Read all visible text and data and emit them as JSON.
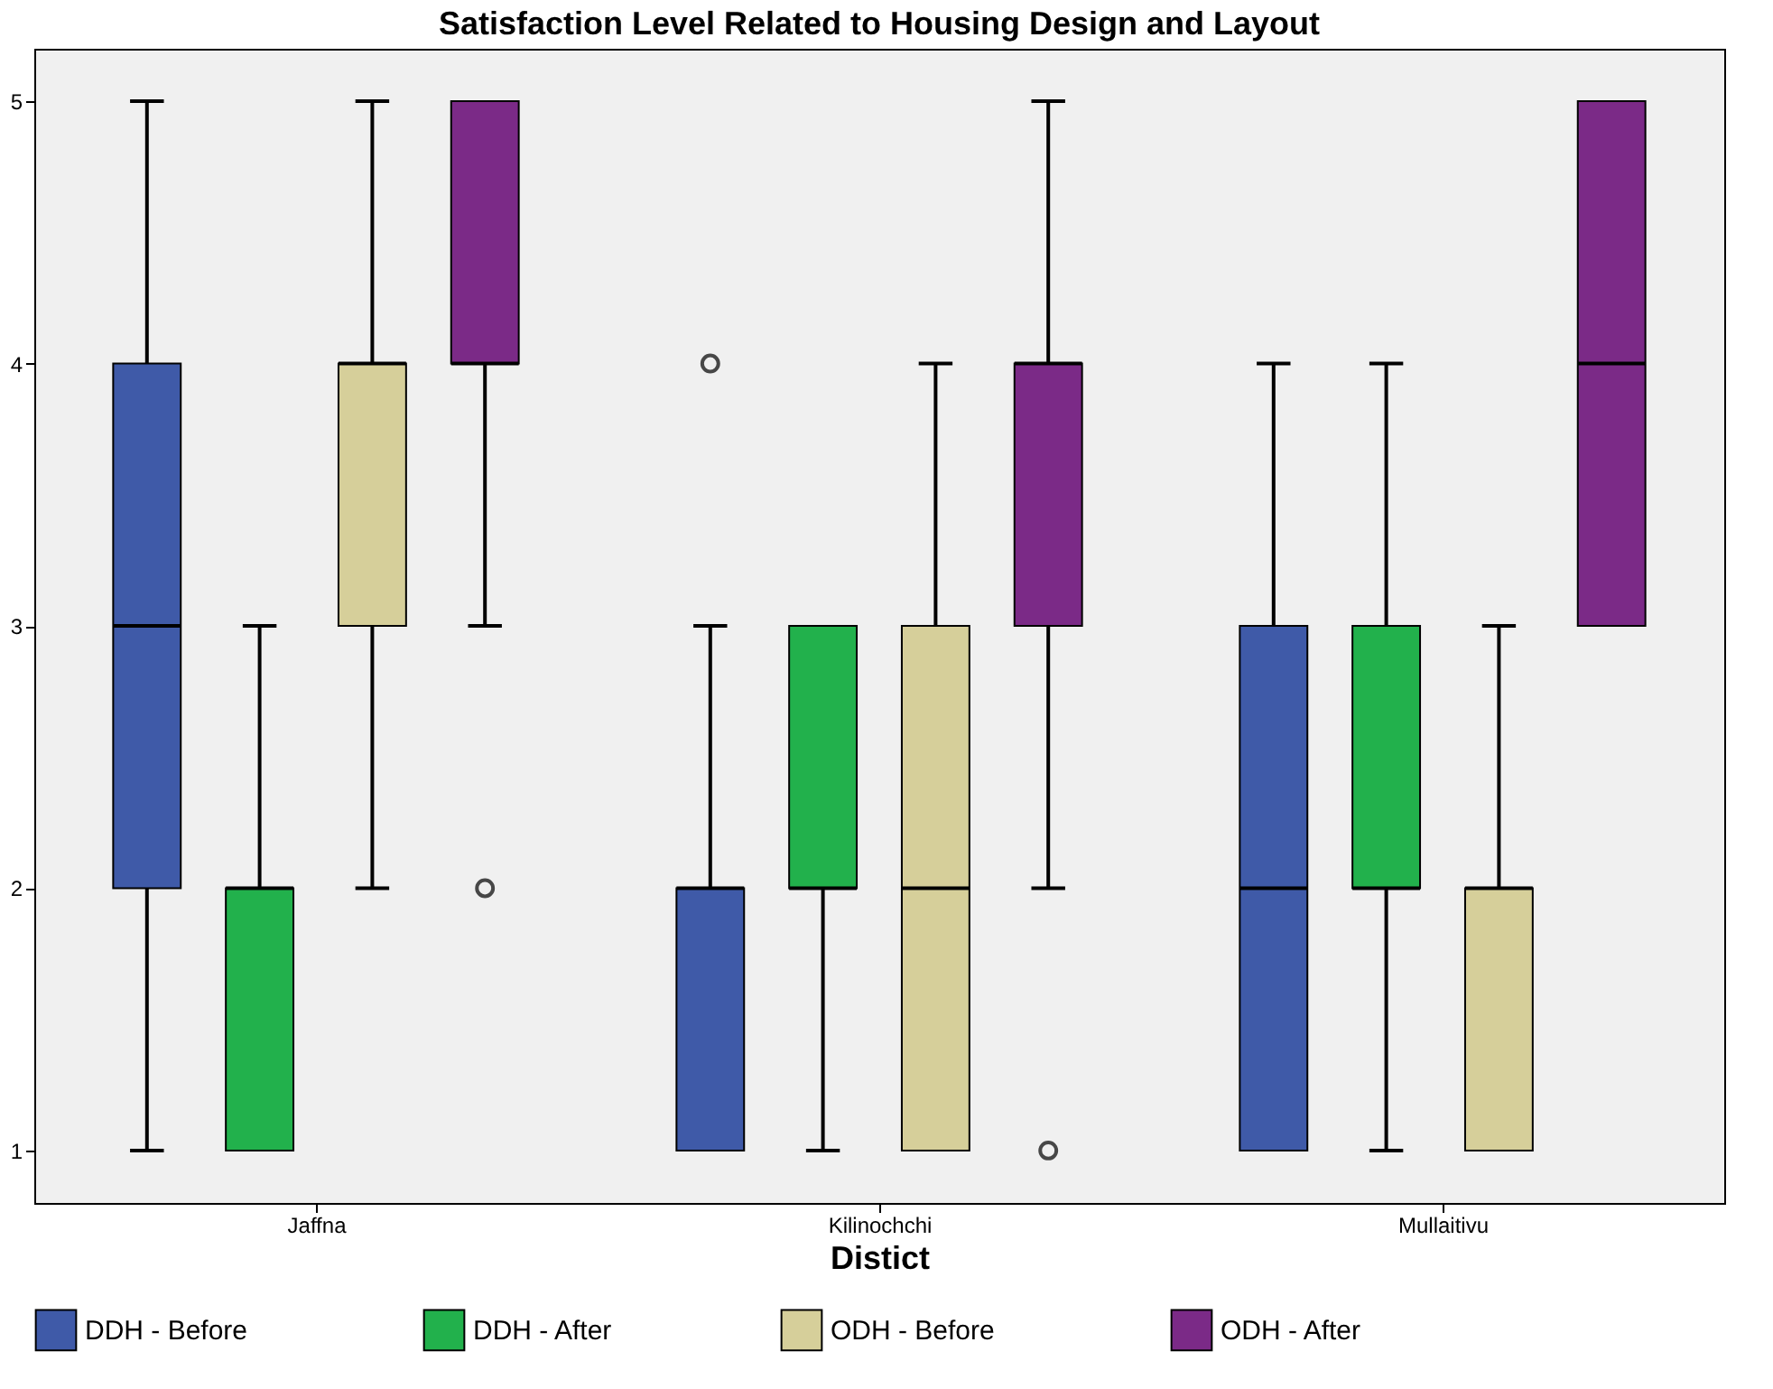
{
  "chart_data": {
    "type": "box",
    "title": "Satisfaction Level Related to Housing Design and Layout",
    "xlabel": "Distict",
    "categories": [
      "Jaffna",
      "Kilinochchi",
      "Mullaitivu"
    ],
    "ylim": [
      0.8,
      5.2
    ],
    "yticks": [
      1,
      2,
      3,
      4,
      5
    ],
    "grid": false,
    "legend": "bottom",
    "series": [
      {
        "name": "DDH -  Before",
        "color": "#3f5aa8",
        "boxes": [
          {
            "low": 1,
            "q1": 2,
            "median": 3,
            "q3": 4,
            "high": 5
          },
          {
            "low": 1,
            "q1": 1,
            "median": 2,
            "q3": 2,
            "high": 3,
            "outliers": [
              4
            ]
          },
          {
            "low": 1,
            "q1": 1,
            "median": 2,
            "q3": 3,
            "high": 4
          }
        ]
      },
      {
        "name": "DDH - After",
        "color": "#22b14c",
        "boxes": [
          {
            "low": 1,
            "q1": 1,
            "median": 2,
            "q3": 2,
            "high": 3
          },
          {
            "low": 1,
            "q1": 2,
            "median": 2,
            "q3": 3,
            "high": 3
          },
          {
            "low": 1,
            "q1": 2,
            "median": 2,
            "q3": 3,
            "high": 4
          }
        ]
      },
      {
        "name": "ODH -  Before",
        "color": "#d6cf9a",
        "boxes": [
          {
            "low": 2,
            "q1": 3,
            "median": 4,
            "q3": 4,
            "high": 5
          },
          {
            "low": 1,
            "q1": 1,
            "median": 2,
            "q3": 3,
            "high": 4
          },
          {
            "low": 1,
            "q1": 1,
            "median": 2,
            "q3": 2,
            "high": 3
          }
        ]
      },
      {
        "name": "ODH - After",
        "color": "#7b2a87",
        "boxes": [
          {
            "low": 3,
            "q1": 4,
            "median": 4,
            "q3": 5,
            "high": 5,
            "outliers": [
              2
            ]
          },
          {
            "low": 2,
            "q1": 3,
            "median": 4,
            "q3": 4,
            "high": 5,
            "outliers": [
              1
            ]
          },
          {
            "low": 3,
            "q1": 3,
            "median": 4,
            "q3": 5,
            "high": 5
          }
        ]
      }
    ]
  }
}
